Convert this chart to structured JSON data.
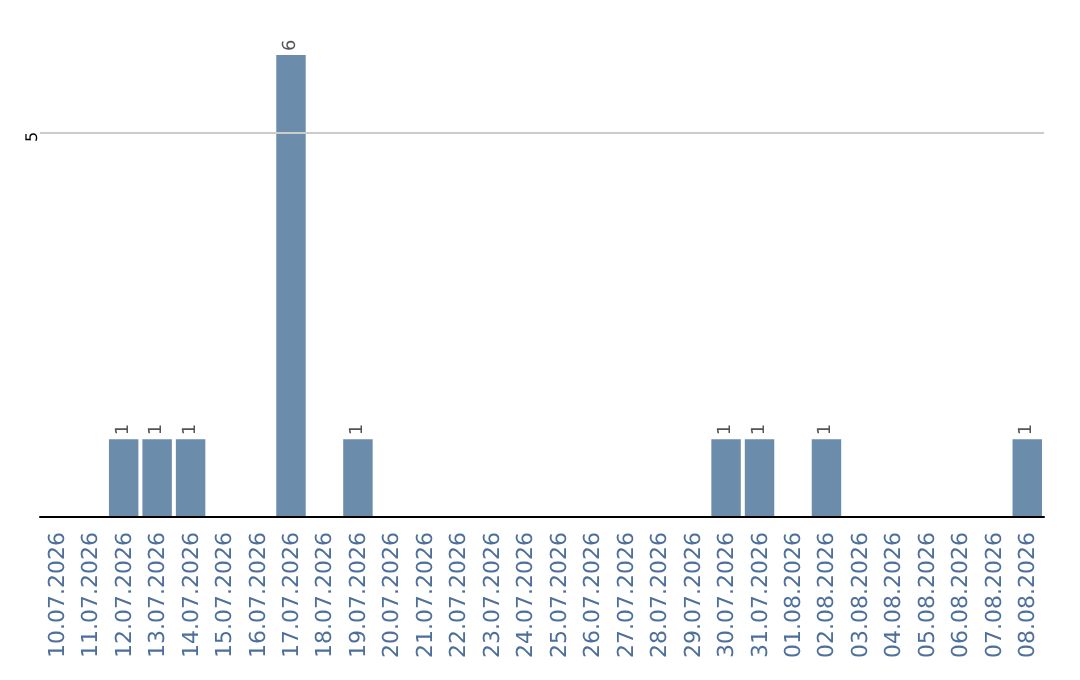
{
  "chart_data": {
    "type": "bar",
    "categories": [
      "10.07.2026",
      "11.07.2026",
      "12.07.2026",
      "13.07.2026",
      "14.07.2026",
      "15.07.2026",
      "16.07.2026",
      "17.07.2026",
      "18.07.2026",
      "19.07.2026",
      "20.07.2026",
      "21.07.2026",
      "22.07.2026",
      "23.07.2026",
      "24.07.2026",
      "25.07.2026",
      "26.07.2026",
      "27.07.2026",
      "28.07.2026",
      "29.07.2026",
      "30.07.2026",
      "31.07.2026",
      "01.08.2026",
      "02.08.2026",
      "03.08.2026",
      "04.08.2026",
      "05.08.2026",
      "06.08.2026",
      "07.08.2026",
      "08.08.2026"
    ],
    "values": [
      0,
      0,
      1,
      1,
      1,
      0,
      0,
      6,
      0,
      1,
      0,
      0,
      0,
      0,
      0,
      0,
      0,
      0,
      0,
      0,
      1,
      1,
      0,
      1,
      0,
      0,
      0,
      0,
      0,
      1
    ],
    "value_labels": [
      null,
      null,
      "1",
      "1",
      "1",
      null,
      null,
      "6",
      null,
      "1",
      null,
      null,
      null,
      null,
      null,
      null,
      null,
      null,
      null,
      null,
      "1",
      "1",
      null,
      "1",
      null,
      null,
      null,
      null,
      null,
      "1"
    ],
    "color": "#6b8cab",
    "ref_lines": [
      {
        "axis": "y",
        "value": 5,
        "label": "5",
        "color": "#cccccc"
      }
    ]
  }
}
